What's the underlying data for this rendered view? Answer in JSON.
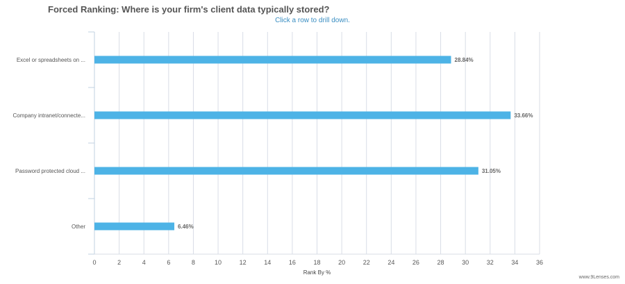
{
  "title": "Forced Ranking: Where is your firm's client data typically stored?",
  "subtitle": "Click a row to drill down.",
  "credit": "www.9Lenses.com",
  "colors": {
    "bar": "#4db3e6",
    "grid": "#d8dde6",
    "axis": "#c0d0e0"
  },
  "chart_data": {
    "type": "bar",
    "orientation": "horizontal",
    "categories": [
      "Excel or spreadsheets on ...",
      "Company intranet/connecte...",
      "Password protected cloud ...",
      "Other"
    ],
    "values": [
      28.84,
      33.66,
      31.05,
      6.46
    ],
    "data_labels": [
      "28.84%",
      "33.66%",
      "31.05%",
      "6.46%"
    ],
    "xlabel": "Rank By %",
    "xlim": [
      0,
      36
    ],
    "xticks": [
      "0",
      "2",
      "4",
      "6",
      "8",
      "10",
      "12",
      "14",
      "16",
      "18",
      "20",
      "22",
      "24",
      "26",
      "28",
      "30",
      "32",
      "34",
      "36"
    ],
    "grid": true
  }
}
